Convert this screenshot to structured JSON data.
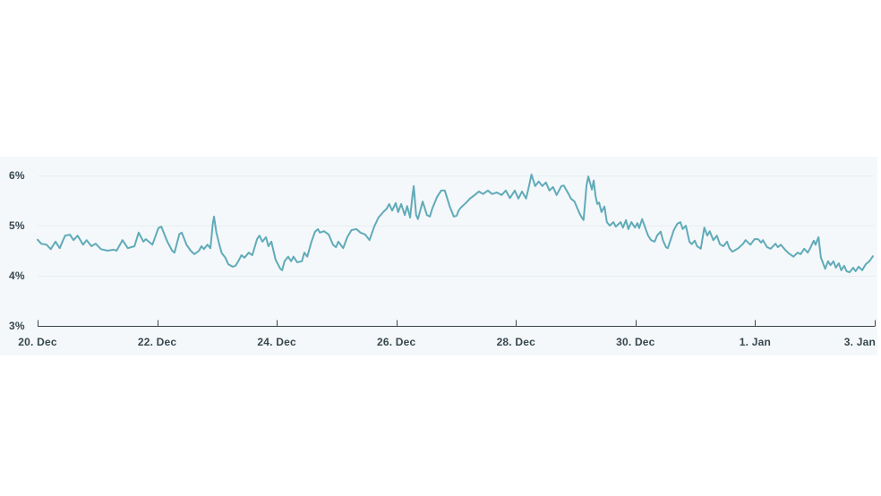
{
  "page": {
    "background": "#ffffff"
  },
  "chart_data": {
    "type": "line",
    "title": "",
    "legend": false,
    "x_axis": {
      "unit": "date",
      "range_days": [
        0,
        14
      ],
      "tick_labels": [
        {
          "label": "20. Dec",
          "day": 0
        },
        {
          "label": "22. Dec",
          "day": 2
        },
        {
          "label": "24. Dec",
          "day": 4
        },
        {
          "label": "26. Dec",
          "day": 6
        },
        {
          "label": "28. Dec",
          "day": 8
        },
        {
          "label": "30. Dec",
          "day": 10
        },
        {
          "label": "1. Jan",
          "day": 12
        },
        {
          "label": "3. Jan",
          "day": 14
        }
      ]
    },
    "y_axis": {
      "unit": "%",
      "range": [
        3,
        6.4
      ],
      "grid": true,
      "ticks": [
        {
          "label": "3%",
          "value": 3
        },
        {
          "label": "4%",
          "value": 4
        },
        {
          "label": "5%",
          "value": 5
        },
        {
          "label": "6%",
          "value": 6
        }
      ]
    },
    "colors": {
      "line": "#60abb9",
      "grid": "#e6eef1",
      "axis": "#37474f",
      "labels": "#37474f",
      "plot_background": "#f5f8fa"
    },
    "series": [
      {
        "name": "value",
        "x_unit": "days_since_20_dec",
        "y_unit": "percent",
        "points": [
          [
            0,
            4.72
          ],
          [
            0.06,
            4.64
          ],
          [
            0.15,
            4.62
          ],
          [
            0.22,
            4.53
          ],
          [
            0.3,
            4.68
          ],
          [
            0.37,
            4.55
          ],
          [
            0.46,
            4.8
          ],
          [
            0.54,
            4.82
          ],
          [
            0.6,
            4.71
          ],
          [
            0.67,
            4.8
          ],
          [
            0.76,
            4.62
          ],
          [
            0.82,
            4.71
          ],
          [
            0.9,
            4.59
          ],
          [
            0.97,
            4.64
          ],
          [
            1.06,
            4.53
          ],
          [
            1.17,
            4.5
          ],
          [
            1.27,
            4.52
          ],
          [
            1.32,
            4.5
          ],
          [
            1.42,
            4.71
          ],
          [
            1.51,
            4.55
          ],
          [
            1.62,
            4.59
          ],
          [
            1.69,
            4.86
          ],
          [
            1.77,
            4.68
          ],
          [
            1.81,
            4.73
          ],
          [
            1.92,
            4.62
          ],
          [
            2.02,
            4.95
          ],
          [
            2.07,
            4.98
          ],
          [
            2.17,
            4.68
          ],
          [
            2.25,
            4.5
          ],
          [
            2.29,
            4.46
          ],
          [
            2.37,
            4.83
          ],
          [
            2.41,
            4.86
          ],
          [
            2.49,
            4.62
          ],
          [
            2.56,
            4.5
          ],
          [
            2.62,
            4.43
          ],
          [
            2.7,
            4.5
          ],
          [
            2.74,
            4.59
          ],
          [
            2.78,
            4.53
          ],
          [
            2.84,
            4.62
          ],
          [
            2.89,
            4.55
          ],
          [
            2.93,
            5.04
          ],
          [
            2.95,
            5.18
          ],
          [
            2.99,
            4.86
          ],
          [
            3.04,
            4.62
          ],
          [
            3.08,
            4.45
          ],
          [
            3.14,
            4.36
          ],
          [
            3.19,
            4.23
          ],
          [
            3.26,
            4.18
          ],
          [
            3.31,
            4.2
          ],
          [
            3.37,
            4.32
          ],
          [
            3.41,
            4.41
          ],
          [
            3.46,
            4.36
          ],
          [
            3.53,
            4.46
          ],
          [
            3.59,
            4.41
          ],
          [
            3.67,
            4.73
          ],
          [
            3.71,
            4.8
          ],
          [
            3.76,
            4.68
          ],
          [
            3.82,
            4.77
          ],
          [
            3.86,
            4.59
          ],
          [
            3.91,
            4.68
          ],
          [
            3.98,
            4.32
          ],
          [
            4.06,
            4.14
          ],
          [
            4.09,
            4.11
          ],
          [
            4.13,
            4.29
          ],
          [
            4.19,
            4.38
          ],
          [
            4.24,
            4.29
          ],
          [
            4.28,
            4.38
          ],
          [
            4.34,
            4.27
          ],
          [
            4.42,
            4.29
          ],
          [
            4.46,
            4.46
          ],
          [
            4.51,
            4.38
          ],
          [
            4.58,
            4.68
          ],
          [
            4.64,
            4.88
          ],
          [
            4.69,
            4.93
          ],
          [
            4.72,
            4.86
          ],
          [
            4.79,
            4.89
          ],
          [
            4.87,
            4.82
          ],
          [
            4.94,
            4.62
          ],
          [
            4.99,
            4.57
          ],
          [
            5.03,
            4.68
          ],
          [
            5.11,
            4.55
          ],
          [
            5.18,
            4.77
          ],
          [
            5.25,
            4.91
          ],
          [
            5.33,
            4.93
          ],
          [
            5.4,
            4.86
          ],
          [
            5.48,
            4.82
          ],
          [
            5.55,
            4.71
          ],
          [
            5.63,
            4.98
          ],
          [
            5.7,
            5.16
          ],
          [
            5.78,
            5.27
          ],
          [
            5.84,
            5.34
          ],
          [
            5.88,
            5.43
          ],
          [
            5.93,
            5.3
          ],
          [
            5.99,
            5.45
          ],
          [
            6.03,
            5.27
          ],
          [
            6.08,
            5.43
          ],
          [
            6.14,
            5.21
          ],
          [
            6.18,
            5.39
          ],
          [
            6.23,
            5.16
          ],
          [
            6.27,
            5.6
          ],
          [
            6.29,
            5.79
          ],
          [
            6.33,
            5.21
          ],
          [
            6.36,
            5.13
          ],
          [
            6.44,
            5.48
          ],
          [
            6.51,
            5.21
          ],
          [
            6.56,
            5.18
          ],
          [
            6.6,
            5.34
          ],
          [
            6.68,
            5.57
          ],
          [
            6.75,
            5.7
          ],
          [
            6.81,
            5.7
          ],
          [
            6.89,
            5.39
          ],
          [
            6.96,
            5.18
          ],
          [
            7.01,
            5.2
          ],
          [
            7.04,
            5.3
          ],
          [
            7.08,
            5.36
          ],
          [
            7.16,
            5.45
          ],
          [
            7.23,
            5.54
          ],
          [
            7.31,
            5.61
          ],
          [
            7.38,
            5.68
          ],
          [
            7.45,
            5.63
          ],
          [
            7.53,
            5.7
          ],
          [
            7.6,
            5.63
          ],
          [
            7.68,
            5.66
          ],
          [
            7.76,
            5.61
          ],
          [
            7.83,
            5.7
          ],
          [
            7.9,
            5.55
          ],
          [
            7.98,
            5.7
          ],
          [
            8.04,
            5.54
          ],
          [
            8.1,
            5.68
          ],
          [
            8.17,
            5.54
          ],
          [
            8.22,
            5.8
          ],
          [
            8.26,
            6.02
          ],
          [
            8.32,
            5.79
          ],
          [
            8.38,
            5.88
          ],
          [
            8.44,
            5.79
          ],
          [
            8.5,
            5.86
          ],
          [
            8.56,
            5.7
          ],
          [
            8.62,
            5.77
          ],
          [
            8.68,
            5.61
          ],
          [
            8.76,
            5.79
          ],
          [
            8.8,
            5.8
          ],
          [
            8.88,
            5.63
          ],
          [
            8.92,
            5.54
          ],
          [
            8.98,
            5.48
          ],
          [
            9.06,
            5.25
          ],
          [
            9.1,
            5.16
          ],
          [
            9.13,
            5.11
          ],
          [
            9.18,
            5.8
          ],
          [
            9.21,
            5.98
          ],
          [
            9.24,
            5.85
          ],
          [
            9.27,
            5.72
          ],
          [
            9.3,
            5.9
          ],
          [
            9.33,
            5.6
          ],
          [
            9.36,
            5.43
          ],
          [
            9.39,
            5.46
          ],
          [
            9.43,
            5.27
          ],
          [
            9.48,
            5.38
          ],
          [
            9.52,
            5.07
          ],
          [
            9.57,
            5.0
          ],
          [
            9.63,
            5.07
          ],
          [
            9.67,
            4.98
          ],
          [
            9.75,
            5.07
          ],
          [
            9.79,
            4.96
          ],
          [
            9.84,
            5.11
          ],
          [
            9.88,
            4.93
          ],
          [
            9.93,
            5.07
          ],
          [
            9.99,
            4.96
          ],
          [
            10.03,
            5.05
          ],
          [
            10.06,
            4.95
          ],
          [
            10.11,
            5.13
          ],
          [
            10.17,
            4.93
          ],
          [
            10.21,
            4.8
          ],
          [
            10.26,
            4.71
          ],
          [
            10.32,
            4.68
          ],
          [
            10.36,
            4.8
          ],
          [
            10.42,
            4.88
          ],
          [
            10.46,
            4.7
          ],
          [
            10.51,
            4.57
          ],
          [
            10.54,
            4.55
          ],
          [
            10.59,
            4.73
          ],
          [
            10.64,
            4.91
          ],
          [
            10.7,
            5.04
          ],
          [
            10.75,
            5.07
          ],
          [
            10.79,
            4.93
          ],
          [
            10.84,
            5.0
          ],
          [
            10.9,
            4.68
          ],
          [
            10.94,
            4.63
          ],
          [
            10.99,
            4.7
          ],
          [
            11.03,
            4.59
          ],
          [
            11.09,
            4.54
          ],
          [
            11.15,
            4.96
          ],
          [
            11.2,
            4.8
          ],
          [
            11.24,
            4.89
          ],
          [
            11.3,
            4.71
          ],
          [
            11.36,
            4.8
          ],
          [
            11.41,
            4.63
          ],
          [
            11.47,
            4.59
          ],
          [
            11.53,
            4.68
          ],
          [
            11.57,
            4.55
          ],
          [
            11.62,
            4.48
          ],
          [
            11.65,
            4.5
          ],
          [
            11.72,
            4.55
          ],
          [
            11.8,
            4.64
          ],
          [
            11.84,
            4.71
          ],
          [
            11.92,
            4.62
          ],
          [
            11.99,
            4.73
          ],
          [
            12.05,
            4.73
          ],
          [
            12.1,
            4.66
          ],
          [
            12.13,
            4.71
          ],
          [
            12.2,
            4.57
          ],
          [
            12.26,
            4.54
          ],
          [
            12.34,
            4.64
          ],
          [
            12.38,
            4.57
          ],
          [
            12.43,
            4.62
          ],
          [
            12.5,
            4.52
          ],
          [
            12.56,
            4.45
          ],
          [
            12.64,
            4.38
          ],
          [
            12.71,
            4.46
          ],
          [
            12.76,
            4.43
          ],
          [
            12.82,
            4.54
          ],
          [
            12.88,
            4.46
          ],
          [
            12.92,
            4.55
          ],
          [
            12.98,
            4.7
          ],
          [
            13.01,
            4.62
          ],
          [
            13.06,
            4.77
          ],
          [
            13.1,
            4.36
          ],
          [
            13.13,
            4.27
          ],
          [
            13.17,
            4.14
          ],
          [
            13.22,
            4.29
          ],
          [
            13.26,
            4.21
          ],
          [
            13.31,
            4.29
          ],
          [
            13.35,
            4.16
          ],
          [
            13.4,
            4.25
          ],
          [
            13.44,
            4.11
          ],
          [
            13.49,
            4.2
          ],
          [
            13.53,
            4.09
          ],
          [
            13.58,
            4.07
          ],
          [
            13.64,
            4.16
          ],
          [
            13.68,
            4.09
          ],
          [
            13.73,
            4.18
          ],
          [
            13.79,
            4.11
          ],
          [
            13.85,
            4.23
          ],
          [
            13.91,
            4.29
          ],
          [
            13.97,
            4.39
          ]
        ]
      }
    ]
  }
}
